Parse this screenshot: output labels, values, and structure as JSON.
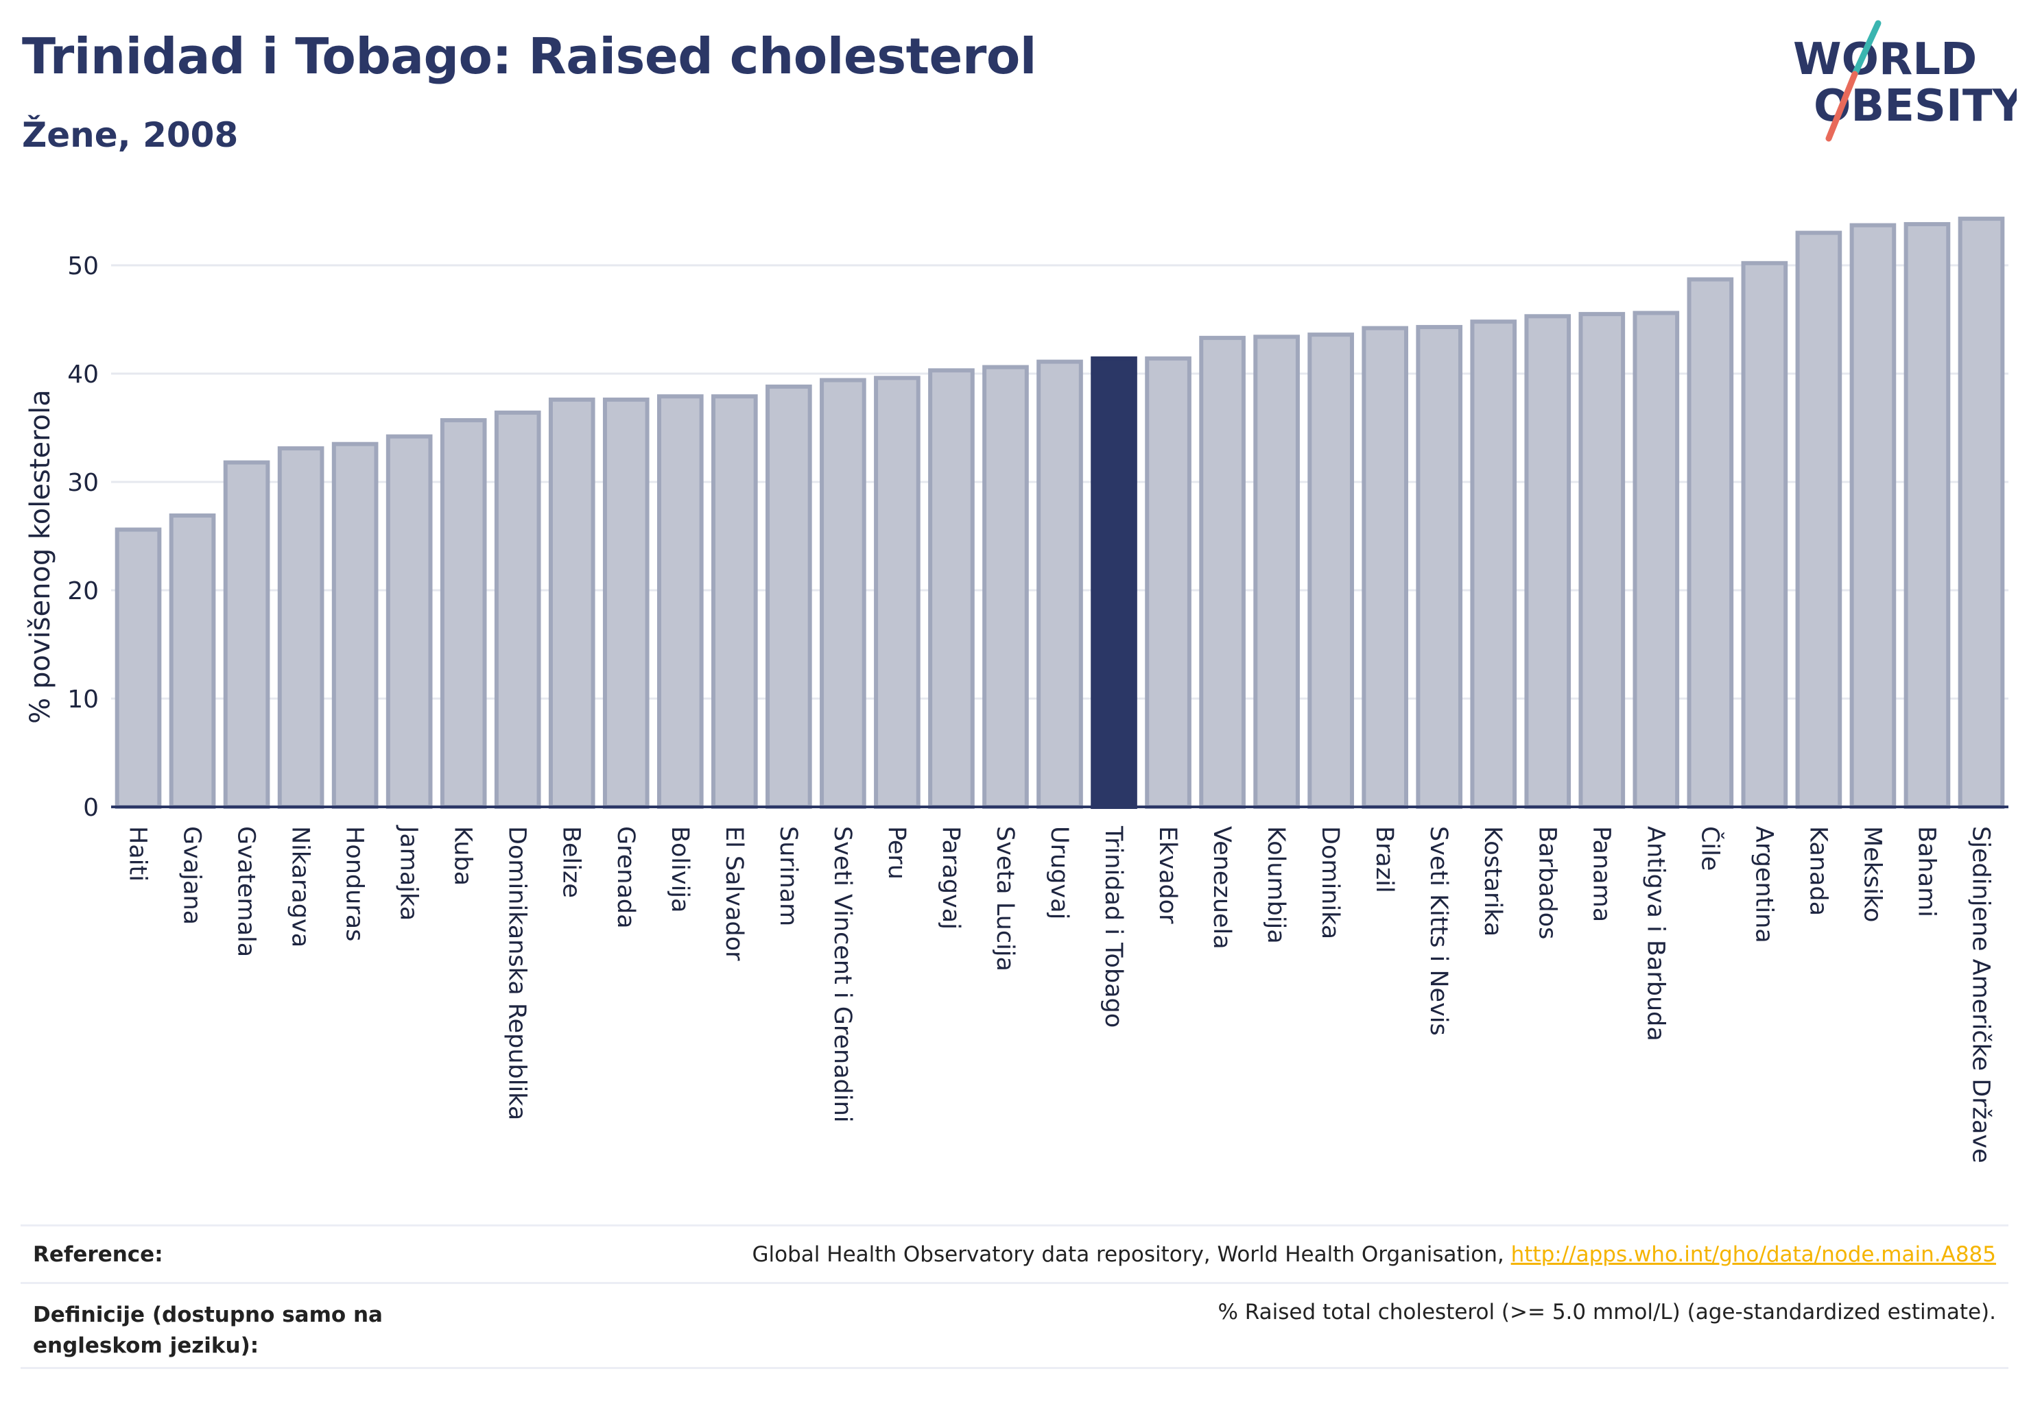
{
  "header": {
    "title": "Trinidad i Tobago: Raised cholesterol",
    "subtitle": "Žene, 2008"
  },
  "logo": {
    "line1": "WORLD",
    "line2": "OBESITY"
  },
  "colors": {
    "highlight_bar": "#2b3766",
    "default_bar_fill": "#c0c4d1",
    "default_bar_stroke": "#a0a7bc",
    "gridline": "#e6e8ef",
    "axis": "#2b3766",
    "logo_text": "#2b3766",
    "logo_slash_teal": "#3ab5b0",
    "logo_slash_coral": "#e86a5a",
    "link": "#f5b400"
  },
  "chart_data": {
    "type": "bar",
    "ylabel": "% povišenog kolesterola",
    "xlabel": "",
    "ylim": [
      0,
      55
    ],
    "yticks": [
      0,
      10,
      20,
      30,
      40,
      50
    ],
    "grid": true,
    "highlight": "Trinidad i Tobago",
    "categories": [
      "Haiti",
      "Gvajana",
      "Gvatemala",
      "Nikaragva",
      "Honduras",
      "Jamajka",
      "Kuba",
      "Dominikanska Republika",
      "Belize",
      "Grenada",
      "Bolivija",
      "El Salvador",
      "Surinam",
      "Sveti Vincent i Grenadini",
      "Peru",
      "Paragvaj",
      "Sveta Lucija",
      "Urugvaj",
      "Trinidad i Tobago",
      "Ekvador",
      "Venezuela",
      "Kolumbija",
      "Dominika",
      "Brazil",
      "Sveti Kitts i Nevis",
      "Kostarika",
      "Barbados",
      "Panama",
      "Antigva i Barbuda",
      "Čile",
      "Argentina",
      "Kanada",
      "Meksiko",
      "Bahami",
      "Sjedinjene Američke Države"
    ],
    "values": [
      25.6,
      26.9,
      31.8,
      33.1,
      33.5,
      34.2,
      35.7,
      36.4,
      37.6,
      37.6,
      37.9,
      37.9,
      38.8,
      39.4,
      39.6,
      40.3,
      40.6,
      41.1,
      41.4,
      41.4,
      43.3,
      43.4,
      43.6,
      44.2,
      44.3,
      44.8,
      45.3,
      45.5,
      45.6,
      48.7,
      50.2,
      53.0,
      53.7,
      53.8,
      54.3
    ]
  },
  "reference": {
    "label": "Reference:",
    "text": "Global Health Observatory data repository, World Health Organisation, ",
    "link": "http://apps.who.int/gho/data/node.main.A885"
  },
  "definition": {
    "label": "Definicije (dostupno samo na engleskom jeziku):",
    "text": "% Raised total cholesterol (>= 5.0 mmol/L) (age-standardized estimate)."
  }
}
